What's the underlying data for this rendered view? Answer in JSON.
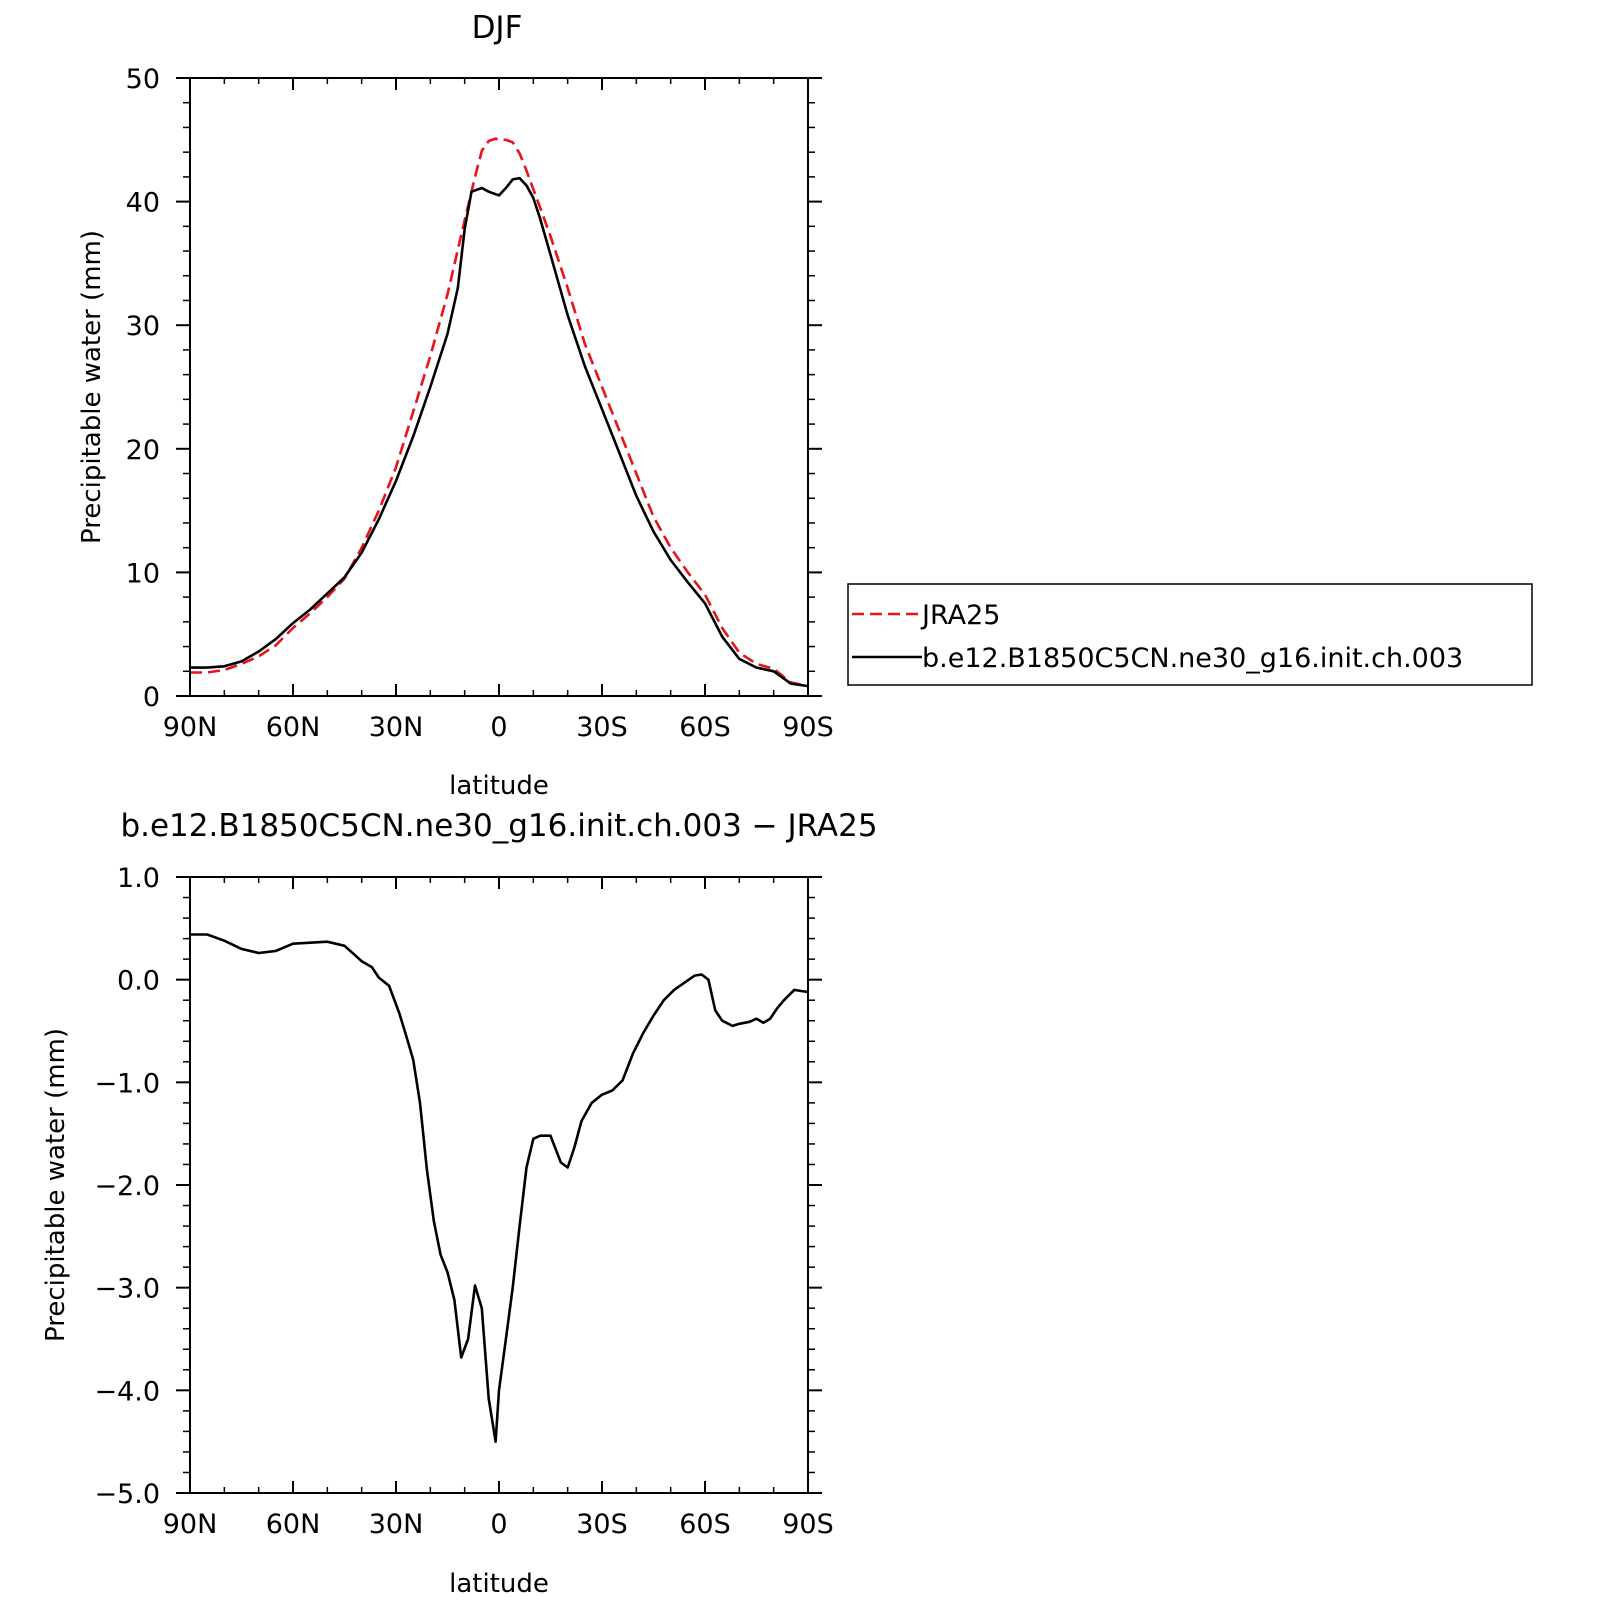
{
  "chart_data": [
    {
      "type": "line",
      "title": "DJF",
      "xlabel": "latitude",
      "ylabel": "Precipitable water (mm)",
      "xlim": [
        90,
        -90
      ],
      "ylim": [
        0,
        50
      ],
      "x_ticks": [
        90,
        60,
        30,
        0,
        -30,
        -60,
        -90
      ],
      "x_tick_labels": [
        "90N",
        "60N",
        "30N",
        "0",
        "30S",
        "60S",
        "90S"
      ],
      "y_ticks": [
        0,
        10,
        20,
        30,
        40,
        50
      ],
      "y_tick_labels": [
        "0",
        "10",
        "20",
        "30",
        "40",
        "50"
      ],
      "legend": {
        "placement": "right, outside",
        "entries": [
          "JRA25",
          "b.e12.B1850C5CN.ne30_g16.init.ch.003"
        ]
      },
      "grid": false,
      "series": [
        {
          "name": "JRA25",
          "color": "#e8141c",
          "dash": true,
          "x": [
            90,
            85,
            80,
            75,
            70,
            65,
            60,
            55,
            50,
            45,
            40,
            35,
            30,
            25,
            20,
            15,
            10,
            7,
            5,
            3,
            1,
            0,
            -2,
            -4,
            -6,
            -8,
            -10,
            -12,
            -15,
            -20,
            -25,
            -30,
            -35,
            -40,
            -45,
            -50,
            -55,
            -60,
            -65,
            -70,
            -75,
            -80,
            -85,
            -90
          ],
          "y": [
            1.9,
            1.9,
            2.1,
            2.6,
            3.2,
            4.1,
            5.5,
            6.7,
            8.0,
            9.5,
            12.0,
            15.0,
            18.5,
            23.0,
            27.5,
            32.5,
            38.5,
            42.0,
            44.1,
            44.9,
            45.1,
            45.0,
            45.0,
            44.8,
            43.9,
            42.5,
            41.0,
            39.5,
            37.2,
            33.0,
            28.5,
            25.0,
            21.5,
            18.0,
            14.5,
            12.0,
            10.0,
            8.2,
            5.5,
            3.5,
            2.6,
            2.2,
            1.1,
            0.8
          ]
        },
        {
          "name": "b.e12.B1850C5CN.ne30_g16.init.ch.003",
          "color": "#000000",
          "dash": false,
          "x": [
            90,
            85,
            80,
            75,
            70,
            65,
            60,
            55,
            50,
            45,
            40,
            35,
            30,
            25,
            20,
            15,
            12,
            10,
            8,
            5,
            3,
            1,
            0,
            -2,
            -4,
            -6,
            -8,
            -10,
            -12,
            -15,
            -20,
            -25,
            -30,
            -35,
            -40,
            -45,
            -50,
            -55,
            -60,
            -65,
            -70,
            -75,
            -80,
            -85,
            -90
          ],
          "y": [
            2.3,
            2.3,
            2.4,
            2.8,
            3.6,
            4.6,
            5.9,
            7.0,
            8.3,
            9.6,
            11.6,
            14.3,
            17.4,
            21.0,
            25.0,
            29.3,
            33.0,
            37.8,
            40.8,
            41.1,
            40.8,
            40.6,
            40.5,
            41.1,
            41.8,
            41.9,
            41.3,
            40.3,
            38.6,
            35.7,
            30.8,
            26.7,
            23.2,
            19.7,
            16.2,
            13.3,
            11.0,
            9.2,
            7.5,
            4.8,
            3.0,
            2.3,
            2.0,
            1.0,
            0.8
          ]
        }
      ]
    },
    {
      "type": "line",
      "title": "b.e12.B1850C5CN.ne30_g16.init.ch.003 − JRA25",
      "xlabel": "latitude",
      "ylabel": "Precipitable water (mm)",
      "xlim": [
        90,
        -90
      ],
      "ylim": [
        -5,
        1
      ],
      "x_ticks": [
        90,
        60,
        30,
        0,
        -30,
        -60,
        -90
      ],
      "x_tick_labels": [
        "90N",
        "60N",
        "30N",
        "0",
        "30S",
        "60S",
        "90S"
      ],
      "y_ticks": [
        1,
        0,
        -1,
        -2,
        -3,
        -4,
        -5
      ],
      "y_tick_labels": [
        "1.0",
        "0.0",
        "−1.0",
        "−2.0",
        "−3.0",
        "−4.0",
        "−5.0"
      ],
      "grid": false,
      "series": [
        {
          "color": "#000000",
          "x": [
            90,
            85,
            80,
            75,
            70,
            65,
            60,
            55,
            50,
            45,
            40,
            37,
            35,
            32,
            29,
            27,
            25,
            23,
            21,
            19,
            17,
            15,
            13,
            11,
            9,
            7,
            5,
            3,
            1,
            0,
            -2,
            -4,
            -6,
            -8,
            -10,
            -12,
            -15,
            -18,
            -20,
            -22,
            -24,
            -27,
            -30,
            -33,
            -36,
            -39,
            -42,
            -45,
            -48,
            -51,
            -54,
            -57,
            -59,
            -61,
            -63,
            -65,
            -68,
            -70,
            -73,
            -75,
            -77,
            -79,
            -81,
            -83,
            -86,
            -88,
            -90
          ],
          "y": [
            0.44,
            0.44,
            0.38,
            0.3,
            0.26,
            0.28,
            0.35,
            0.36,
            0.37,
            0.33,
            0.18,
            0.12,
            0.02,
            -0.06,
            -0.33,
            -0.55,
            -0.78,
            -1.2,
            -1.85,
            -2.35,
            -2.68,
            -2.85,
            -3.12,
            -3.68,
            -3.5,
            -2.98,
            -3.2,
            -4.08,
            -4.5,
            -4.0,
            -3.5,
            -3.0,
            -2.4,
            -1.83,
            -1.55,
            -1.52,
            -1.52,
            -1.78,
            -1.83,
            -1.63,
            -1.38,
            -1.2,
            -1.12,
            -1.08,
            -0.98,
            -0.72,
            -0.52,
            -0.35,
            -0.2,
            -0.1,
            -0.03,
            0.04,
            0.05,
            0.0,
            -0.3,
            -0.4,
            -0.45,
            -0.43,
            -0.41,
            -0.38,
            -0.42,
            -0.38,
            -0.28,
            -0.2,
            -0.1,
            -0.11,
            -0.12
          ]
        }
      ]
    }
  ]
}
